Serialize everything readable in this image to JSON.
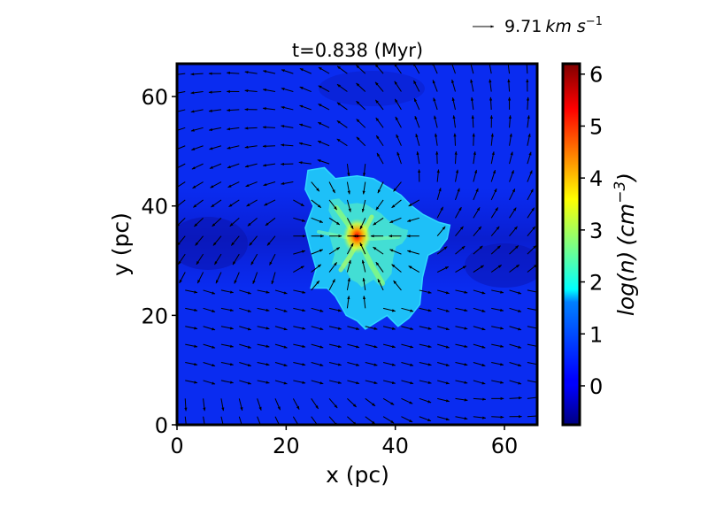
{
  "chart_data": {
    "type": "heatmap",
    "title": "t=0.838 (Myr)",
    "xlabel": "x (pc)",
    "ylabel": "y (pc)",
    "xlim": [
      0,
      66
    ],
    "ylim": [
      0,
      66
    ],
    "x_ticks": [
      0,
      20,
      40,
      60
    ],
    "y_ticks": [
      0,
      20,
      40,
      60
    ],
    "colorbar": {
      "label": "log(n) (cm^-3)",
      "label_main": "log(n)",
      "label_unit": "(cm",
      "label_exp": "−3",
      "label_close": ")",
      "colormap": "jet",
      "range": [
        -0.75,
        6.2
      ],
      "ticks": [
        0,
        1,
        2,
        3,
        4,
        5,
        6
      ]
    },
    "background_log_density": 0.4,
    "cloud": {
      "outline": [
        [
          24,
          46.5
        ],
        [
          27,
          47
        ],
        [
          29,
          45
        ],
        [
          33,
          45.5
        ],
        [
          36,
          45
        ],
        [
          41,
          42
        ],
        [
          43,
          40
        ],
        [
          45,
          38.5
        ],
        [
          48,
          37
        ],
        [
          50,
          36.5
        ],
        [
          49.5,
          34
        ],
        [
          48,
          32
        ],
        [
          46,
          31
        ],
        [
          45,
          27
        ],
        [
          44.5,
          22
        ],
        [
          42.5,
          19.5
        ],
        [
          40.5,
          18
        ],
        [
          38.5,
          20
        ],
        [
          34.5,
          17.5
        ],
        [
          33,
          19
        ],
        [
          31,
          20
        ],
        [
          29,
          23.5
        ],
        [
          27.5,
          25
        ],
        [
          24.5,
          25
        ],
        [
          25.5,
          28.5
        ],
        [
          24.5,
          32
        ],
        [
          23.5,
          36
        ],
        [
          25,
          40
        ],
        [
          23.5,
          43
        ]
      ],
      "mean_log_density": 2.0,
      "filaments_log_density": 3.0,
      "peak": {
        "x": 33,
        "y": 34.5,
        "log_density": 6.0
      }
    },
    "velocity_field": {
      "type": "quiver",
      "reference_vector": {
        "value": 9.71,
        "unit_text": "km s",
        "unit_exp": "−1",
        "label": "9.71 km s^-1"
      },
      "arrow_color": "#000000"
    },
    "grid": false
  }
}
